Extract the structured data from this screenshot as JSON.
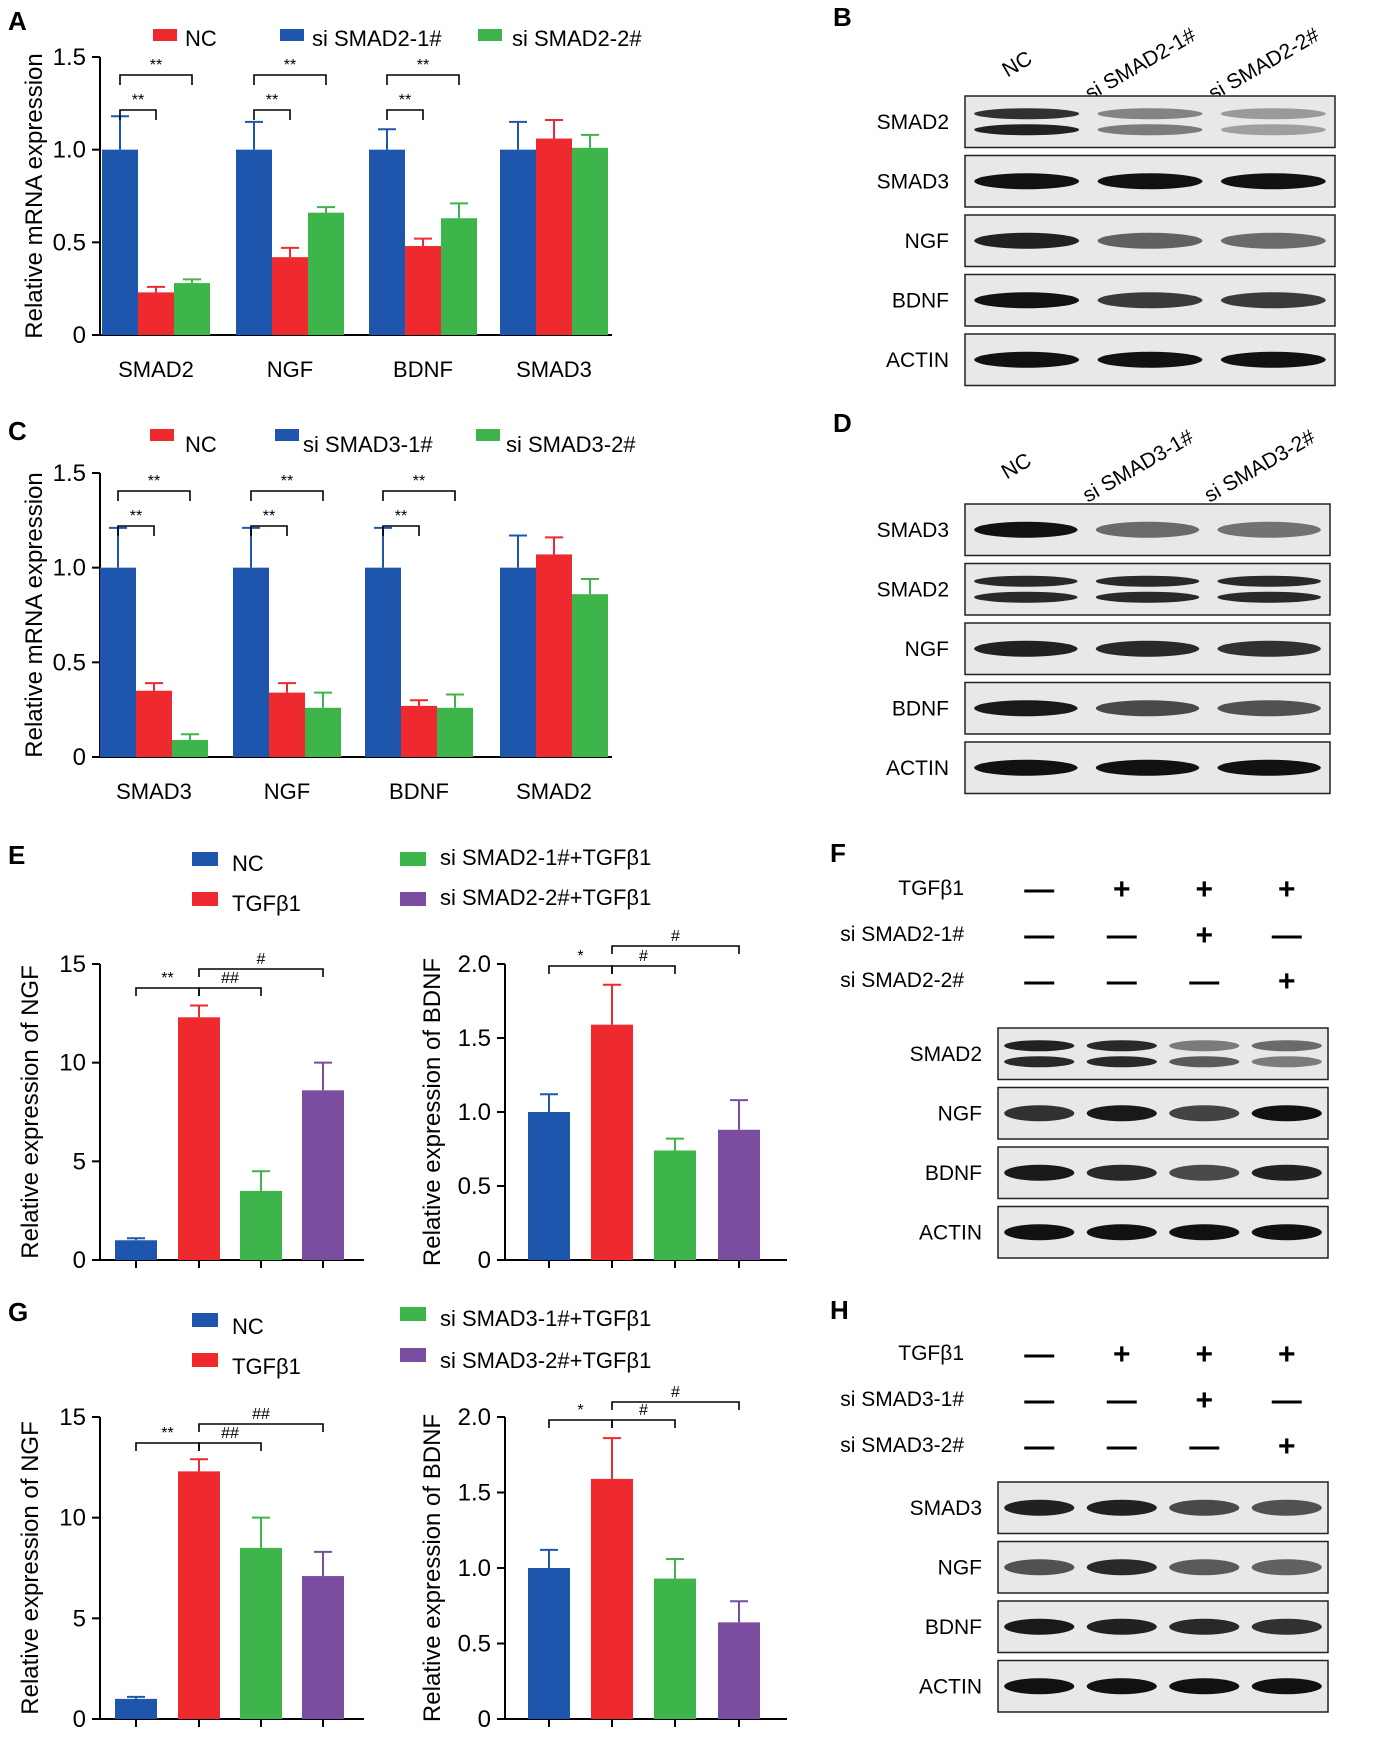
{
  "colors": {
    "blue": "#1f56ad",
    "red": "#ee2a2e",
    "green": "#3db54a",
    "purple": "#7b4da0",
    "axis": "#000000"
  },
  "chart_data": [
    {
      "panel": "A",
      "type": "bar",
      "ylabel": "Relative mRNA expression",
      "ylim": [
        0,
        1.5
      ],
      "yticks": [
        "0",
        "0.5",
        "1.0",
        "1.5"
      ],
      "categories": [
        "SMAD2",
        "NGF",
        "BDNF",
        "SMAD3"
      ],
      "legend": [
        "NC",
        "si SMAD2-1#",
        "si SMAD2-2#"
      ],
      "series": [
        {
          "name": "NC",
          "color": "blue",
          "values": [
            1.0,
            1.0,
            1.0,
            1.0
          ],
          "errors": [
            0.18,
            0.15,
            0.11,
            0.15
          ]
        },
        {
          "name": "si SMAD2-1#",
          "color": "red",
          "values": [
            0.23,
            0.42,
            0.48,
            1.06
          ],
          "errors": [
            0.03,
            0.05,
            0.04,
            0.1
          ]
        },
        {
          "name": "si SMAD2-2#",
          "color": "green",
          "values": [
            0.28,
            0.66,
            0.63,
            1.01
          ],
          "errors": [
            0.02,
            0.03,
            0.08,
            0.07
          ]
        }
      ],
      "significance": [
        {
          "group": 0,
          "from": 0,
          "to": 1,
          "label": "**"
        },
        {
          "group": 0,
          "from": 0,
          "to": 2,
          "label": "**"
        },
        {
          "group": 1,
          "from": 0,
          "to": 1,
          "label": "**"
        },
        {
          "group": 1,
          "from": 0,
          "to": 2,
          "label": "**"
        },
        {
          "group": 2,
          "from": 0,
          "to": 1,
          "label": "**"
        },
        {
          "group": 2,
          "from": 0,
          "to": 2,
          "label": "**"
        }
      ]
    },
    {
      "panel": "C",
      "type": "bar",
      "ylabel": "Relative mRNA expression",
      "ylim": [
        0,
        1.5
      ],
      "yticks": [
        "0",
        "0.5",
        "1.0",
        "1.5"
      ],
      "categories": [
        "SMAD3",
        "NGF",
        "BDNF",
        "SMAD2"
      ],
      "legend": [
        "NC",
        "si SMAD3-1#",
        "si SMAD3-2#"
      ],
      "series": [
        {
          "name": "NC",
          "color": "blue",
          "values": [
            1.0,
            1.0,
            1.0,
            1.0
          ],
          "errors": [
            0.21,
            0.21,
            0.21,
            0.17
          ]
        },
        {
          "name": "si SMAD3-1#",
          "color": "red",
          "values": [
            0.35,
            0.34,
            0.27,
            1.07
          ],
          "errors": [
            0.04,
            0.05,
            0.03,
            0.09
          ]
        },
        {
          "name": "si SMAD3-2#",
          "color": "green",
          "values": [
            0.09,
            0.26,
            0.26,
            0.86
          ],
          "errors": [
            0.03,
            0.08,
            0.07,
            0.08
          ]
        }
      ],
      "significance": [
        {
          "group": 0,
          "from": 0,
          "to": 1,
          "label": "**"
        },
        {
          "group": 0,
          "from": 0,
          "to": 2,
          "label": "**"
        },
        {
          "group": 1,
          "from": 0,
          "to": 1,
          "label": "**"
        },
        {
          "group": 1,
          "from": 0,
          "to": 2,
          "label": "**"
        },
        {
          "group": 2,
          "from": 0,
          "to": 1,
          "label": "**"
        },
        {
          "group": 2,
          "from": 0,
          "to": 2,
          "label": "**"
        }
      ]
    },
    {
      "panel": "E",
      "type": "bar",
      "ylabel": "Relative  expression of NGF",
      "ylim": [
        0,
        15
      ],
      "yticks": [
        "0",
        "5",
        "10",
        "15"
      ],
      "categories": [
        "NC",
        "TGFβ1",
        "si SMAD2-1#+TGFβ1",
        "si SMAD2-2#+TGFβ1"
      ],
      "legend": [
        "NC",
        "TGFβ1",
        "si SMAD2-1#+TGFβ1",
        "si SMAD2-2#+TGFβ1"
      ],
      "values": [
        1.0,
        12.3,
        3.5,
        8.6
      ],
      "errors": [
        0.1,
        0.6,
        1.0,
        1.4
      ],
      "bar_colors": [
        "blue",
        "red",
        "green",
        "purple"
      ],
      "significance": [
        {
          "from": 0,
          "to": 1,
          "label": "**"
        },
        {
          "from": 1,
          "to": 2,
          "label": "##"
        },
        {
          "from": 1,
          "to": 3,
          "label": "#"
        }
      ]
    },
    {
      "panel": "E",
      "type": "bar",
      "ylabel": "Relative  expression of BDNF",
      "ylim": [
        0,
        2.0
      ],
      "yticks": [
        "0",
        "0.5",
        "1.0",
        "1.5",
        "2.0"
      ],
      "categories": [
        "NC",
        "TGFβ1",
        "si SMAD2-1#+TGFβ1",
        "si SMAD2-2#+TGFβ1"
      ],
      "values": [
        1.0,
        1.59,
        0.74,
        0.88
      ],
      "errors": [
        0.12,
        0.27,
        0.08,
        0.2
      ],
      "bar_colors": [
        "blue",
        "red",
        "green",
        "purple"
      ],
      "significance": [
        {
          "from": 0,
          "to": 1,
          "label": "*"
        },
        {
          "from": 1,
          "to": 2,
          "label": "#"
        },
        {
          "from": 1,
          "to": 3,
          "label": "#"
        }
      ]
    },
    {
      "panel": "G",
      "type": "bar",
      "ylabel": "Relative  expression of NGF",
      "ylim": [
        0,
        15
      ],
      "yticks": [
        "0",
        "5",
        "10",
        "15"
      ],
      "categories": [
        "NC",
        "TGFβ1",
        "si SMAD3-1#+TGFβ1",
        "si SMAD3-2#+TGFβ1"
      ],
      "legend": [
        "NC",
        "TGFβ1",
        "si SMAD3-1#+TGFβ1",
        "si SMAD3-2#+TGFβ1"
      ],
      "values": [
        1.0,
        12.3,
        8.5,
        7.1
      ],
      "errors": [
        0.1,
        0.6,
        1.5,
        1.2
      ],
      "bar_colors": [
        "blue",
        "red",
        "green",
        "purple"
      ],
      "significance": [
        {
          "from": 0,
          "to": 1,
          "label": "**"
        },
        {
          "from": 1,
          "to": 2,
          "label": "##"
        },
        {
          "from": 1,
          "to": 3,
          "label": "##"
        }
      ]
    },
    {
      "panel": "G",
      "type": "bar",
      "ylabel": "Relative  expression of BDNF",
      "ylim": [
        0,
        2.0
      ],
      "yticks": [
        "0",
        "0.5",
        "1.0",
        "1.5",
        "2.0"
      ],
      "categories": [
        "NC",
        "TGFβ1",
        "si SMAD3-1#+TGFβ1",
        "si SMAD3-2#+TGFβ1"
      ],
      "values": [
        1.0,
        1.59,
        0.93,
        0.64
      ],
      "errors": [
        0.12,
        0.27,
        0.13,
        0.14
      ],
      "bar_colors": [
        "blue",
        "red",
        "green",
        "purple"
      ],
      "significance": [
        {
          "from": 0,
          "to": 1,
          "label": "*"
        },
        {
          "from": 1,
          "to": 2,
          "label": "#"
        },
        {
          "from": 1,
          "to": 3,
          "label": "#"
        }
      ]
    }
  ],
  "blots": {
    "B": {
      "label": "B",
      "lanes": [
        "NC",
        "si SMAD2-1#",
        "si SMAD2-2#"
      ],
      "rows": [
        {
          "protein": "SMAD2",
          "bands": [
            [
              0.8,
              0.9
            ],
            [
              0.3,
              0.35
            ],
            [
              0.15,
              0.12
            ]
          ]
        },
        {
          "protein": "SMAD3",
          "bands": [
            [
              1.0
            ],
            [
              1.0
            ],
            [
              1.0
            ]
          ]
        },
        {
          "protein": "NGF",
          "bands": [
            [
              0.9
            ],
            [
              0.5
            ],
            [
              0.45
            ]
          ]
        },
        {
          "protein": "BDNF",
          "bands": [
            [
              1.0
            ],
            [
              0.75
            ],
            [
              0.75
            ]
          ]
        },
        {
          "protein": "ACTIN",
          "bands": [
            [
              1.0
            ],
            [
              1.0
            ],
            [
              1.0
            ]
          ]
        }
      ]
    },
    "D": {
      "label": "D",
      "lanes": [
        "NC",
        "si SMAD3-1#",
        "si SMAD3-2#"
      ],
      "rows": [
        {
          "protein": "SMAD3",
          "bands": [
            [
              1.0
            ],
            [
              0.45
            ],
            [
              0.4
            ]
          ]
        },
        {
          "protein": "SMAD2",
          "bands": [
            [
              0.85,
              0.85
            ],
            [
              0.85,
              0.85
            ],
            [
              0.85,
              0.85
            ]
          ]
        },
        {
          "protein": "NGF",
          "bands": [
            [
              0.9
            ],
            [
              0.85
            ],
            [
              0.8
            ]
          ]
        },
        {
          "protein": "BDNF",
          "bands": [
            [
              0.95
            ],
            [
              0.65
            ],
            [
              0.6
            ]
          ]
        },
        {
          "protein": "ACTIN",
          "bands": [
            [
              1.0
            ],
            [
              1.0
            ],
            [
              1.0
            ]
          ]
        }
      ]
    },
    "F": {
      "label": "F",
      "conditions": [
        {
          "name": "TGFβ1",
          "signs": [
            "—",
            "+",
            "+",
            "+"
          ]
        },
        {
          "name": "si SMAD2-1#",
          "signs": [
            "—",
            "—",
            "+",
            "—"
          ]
        },
        {
          "name": "si SMAD2-2#",
          "signs": [
            "—",
            "—",
            "—",
            "+"
          ]
        }
      ],
      "rows": [
        {
          "protein": "SMAD2",
          "bands": [
            [
              0.9,
              0.85
            ],
            [
              0.85,
              0.85
            ],
            [
              0.35,
              0.55
            ],
            [
              0.45,
              0.35
            ]
          ]
        },
        {
          "protein": "NGF",
          "bands": [
            [
              0.8
            ],
            [
              0.95
            ],
            [
              0.7
            ],
            [
              1.0
            ]
          ]
        },
        {
          "protein": "BDNF",
          "bands": [
            [
              0.95
            ],
            [
              0.85
            ],
            [
              0.65
            ],
            [
              0.9
            ]
          ]
        },
        {
          "protein": "ACTIN",
          "bands": [
            [
              1.0
            ],
            [
              1.0
            ],
            [
              1.0
            ],
            [
              1.0
            ]
          ]
        }
      ]
    },
    "H": {
      "label": "H",
      "conditions": [
        {
          "name": "TGFβ1",
          "signs": [
            "—",
            "+",
            "+",
            "+"
          ]
        },
        {
          "name": "si SMAD3-1#",
          "signs": [
            "—",
            "—",
            "+",
            "—"
          ]
        },
        {
          "name": "si SMAD3-2#",
          "signs": [
            "—",
            "—",
            "—",
            "+"
          ]
        }
      ],
      "rows": [
        {
          "protein": "SMAD3",
          "bands": [
            [
              0.9
            ],
            [
              0.9
            ],
            [
              0.65
            ],
            [
              0.6
            ]
          ]
        },
        {
          "protein": "NGF",
          "bands": [
            [
              0.6
            ],
            [
              0.85
            ],
            [
              0.55
            ],
            [
              0.5
            ]
          ]
        },
        {
          "protein": "BDNF",
          "bands": [
            [
              0.95
            ],
            [
              0.9
            ],
            [
              0.85
            ],
            [
              0.8
            ]
          ]
        },
        {
          "protein": "ACTIN",
          "bands": [
            [
              1.0
            ],
            [
              1.0
            ],
            [
              1.0
            ],
            [
              1.0
            ]
          ]
        }
      ]
    }
  },
  "panel_labels": [
    "A",
    "C",
    "E",
    "G"
  ]
}
